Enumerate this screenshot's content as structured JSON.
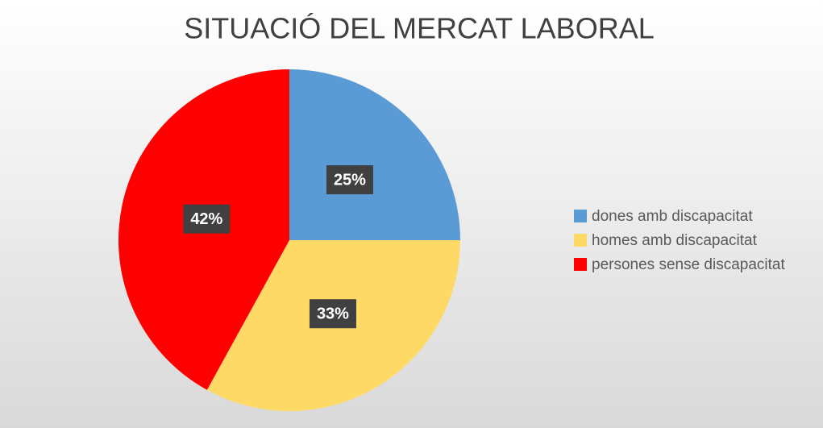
{
  "chart_data": {
    "type": "pie",
    "title": "SITUACIÓ DEL MERCAT LABORAL",
    "categories": [
      "dones amb discapacitat",
      "homes amb discapacitat",
      "persones sense discapacitat"
    ],
    "values": [
      25,
      33,
      42
    ],
    "value_labels": [
      "25%",
      "33%",
      "42%"
    ],
    "colors": [
      "#5b9bd5",
      "#ffd966",
      "#ff0000"
    ],
    "legend": "right"
  }
}
